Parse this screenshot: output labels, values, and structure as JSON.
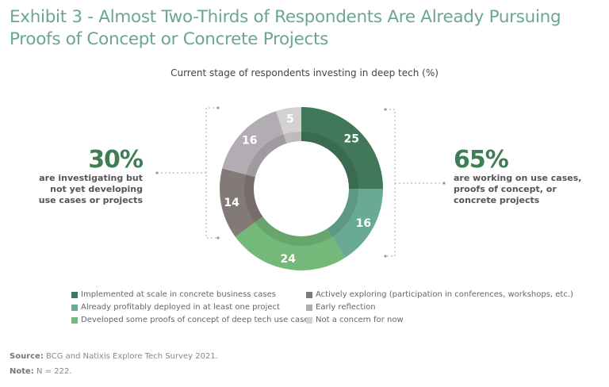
{
  "title": "Exhibit 3 - Almost Two-Thirds of Respondents Are Already Pursuing Proofs of Concept or Concrete Projects",
  "callouts": {
    "left": {
      "value": "30%",
      "text": "are investigating but not yet developing use cases or projects"
    },
    "right": {
      "value": "65%",
      "text": "are working on use cases, proofs of concept, or concrete projects"
    }
  },
  "source_label": "Source:",
  "source_text": "BCG and Natixis Explore Tech Survey 2021.",
  "note_label": "Note:",
  "note_text": "N = 222.",
  "chart_data": {
    "type": "pie",
    "variant": "donut",
    "title": "Current stage of respondents investing in deep tech (%)",
    "legend_placement": "bottom",
    "slices": [
      {
        "label": "Implemented at scale in concrete business cases",
        "value": 25,
        "color": "#41785a"
      },
      {
        "label": "Already profitably deployed in at least one project",
        "value": 16,
        "color": "#69aa94"
      },
      {
        "label": "Developed some proofs of concept of deep tech use cases",
        "value": 24,
        "color": "#74b87a"
      },
      {
        "label": "Actively exploring (participation in conferences, workshops, etc.)",
        "value": 14,
        "color": "#827a77"
      },
      {
        "label": "Early reflection",
        "value": 16,
        "color": "#b2adb3"
      },
      {
        "label": "Not a concern for now",
        "value": 5,
        "color": "#d3d1d2"
      }
    ]
  }
}
